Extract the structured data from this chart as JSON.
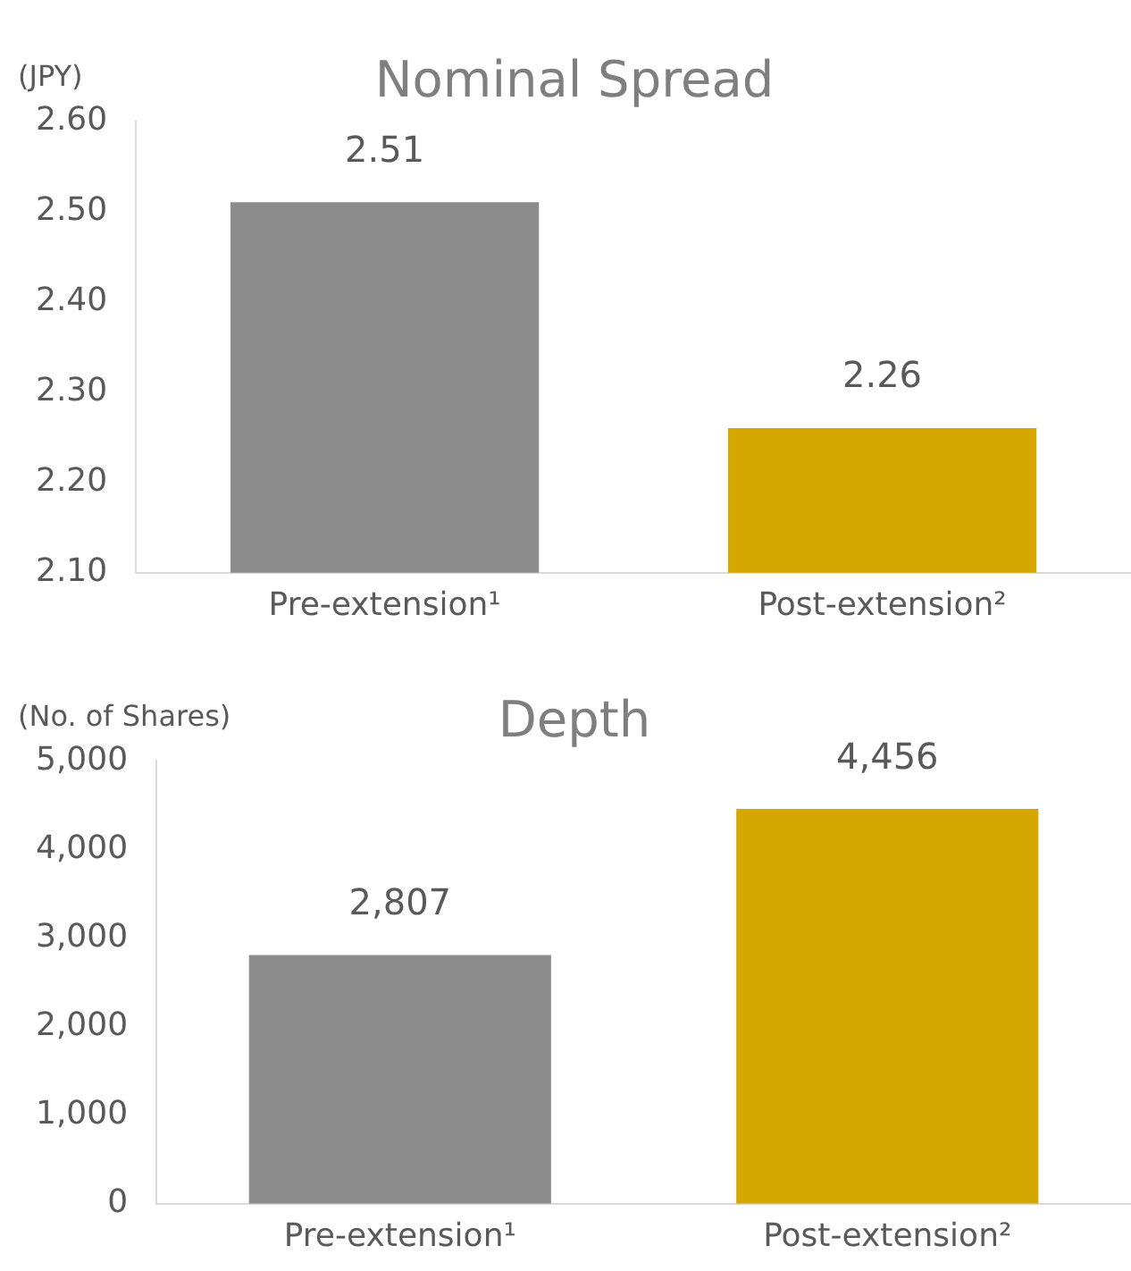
{
  "chart_data": [
    {
      "type": "bar",
      "title": "Nominal Spread",
      "ylabel": "(JPY)",
      "categories": [
        "Pre-extension¹",
        "Post-extension²"
      ],
      "values": [
        2.51,
        2.26
      ],
      "colors": [
        "#8c8c8c",
        "#d4a800"
      ],
      "ylim": [
        2.1,
        2.6
      ],
      "yticks": [
        {
          "value": 2.1,
          "label": "2.10"
        },
        {
          "value": 2.2,
          "label": "2.20"
        },
        {
          "value": 2.3,
          "label": "2.30"
        },
        {
          "value": 2.4,
          "label": "2.40"
        },
        {
          "value": 2.5,
          "label": "2.50"
        },
        {
          "value": 2.6,
          "label": "2.60"
        }
      ],
      "data_labels": true,
      "grid": false,
      "legend": false
    },
    {
      "type": "bar",
      "title": "Depth",
      "ylabel": "(No. of Shares)",
      "categories": [
        "Pre-extension¹",
        "Post-extension²"
      ],
      "values": [
        2807,
        4456
      ],
      "value_labels": [
        "2,807",
        "4,456"
      ],
      "colors": [
        "#8c8c8c",
        "#d4a800"
      ],
      "ylim": [
        0,
        5000
      ],
      "yticks": [
        {
          "value": 0,
          "label": "0"
        },
        {
          "value": 1000,
          "label": "1,000"
        },
        {
          "value": 2000,
          "label": "2,000"
        },
        {
          "value": 3000,
          "label": "3,000"
        },
        {
          "value": 4000,
          "label": "4,000"
        },
        {
          "value": 5000,
          "label": "5,000"
        }
      ],
      "grid": false,
      "legend": false
    }
  ]
}
